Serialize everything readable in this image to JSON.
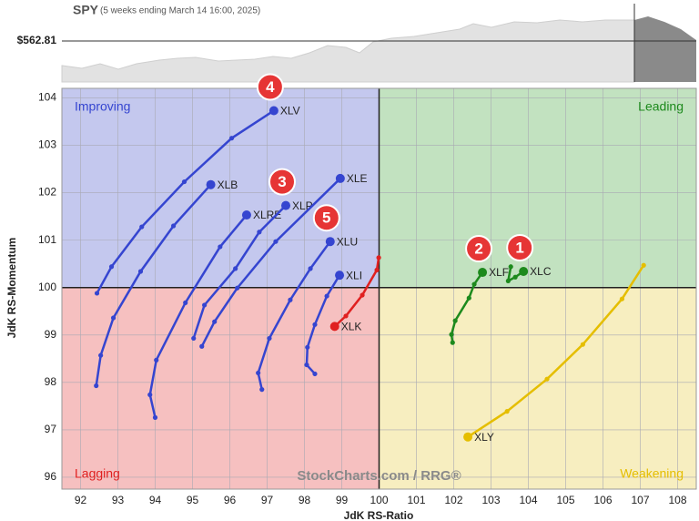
{
  "chart_data": {
    "type": "rrg",
    "title": "SPY",
    "subtitle": "(5 weeks ending March 14 16:00, 2025)",
    "price_label": "$562.81",
    "x_label": "JdK RS-Ratio",
    "y_label": "JdK RS-Momentum",
    "watermark": "StockCharts.com / RRG®",
    "xlim": [
      91.5,
      108.5
    ],
    "ylim": [
      95.75,
      104.2
    ],
    "xticks": [
      92,
      93,
      94,
      95,
      96,
      97,
      98,
      99,
      100,
      101,
      102,
      103,
      104,
      105,
      106,
      107,
      108
    ],
    "yticks": [
      96,
      97,
      98,
      99,
      100,
      101,
      102,
      103,
      104
    ],
    "grid": true,
    "center": {
      "x": 100,
      "y": 100
    },
    "quadrants": [
      {
        "name": "Improving",
        "color": "#c4c8ee"
      },
      {
        "name": "Leading",
        "color": "#c2e2c0"
      },
      {
        "name": "Lagging",
        "color": "#f6c0c0"
      },
      {
        "name": "Weakening",
        "color": "#f7eec0"
      }
    ],
    "series": [
      {
        "name": "XLV",
        "color": "#3545d0",
        "callout": "4",
        "x": [
          92.44,
          92.83,
          93.64,
          94.78,
          96.05,
          97.18
        ],
        "y": [
          99.88,
          100.44,
          101.28,
          102.23,
          103.15,
          103.73
        ]
      },
      {
        "name": "XLB",
        "color": "#3545d0",
        "x": [
          92.42,
          92.54,
          92.88,
          93.61,
          94.49,
          95.49
        ],
        "y": [
          97.93,
          98.57,
          99.36,
          100.34,
          101.3,
          102.17
        ]
      },
      {
        "name": "XLRE",
        "color": "#3545d0",
        "x": [
          94.0,
          93.86,
          94.03,
          94.81,
          95.74,
          96.45
        ],
        "y": [
          97.26,
          97.74,
          98.47,
          99.68,
          100.86,
          101.53
        ]
      },
      {
        "name": "XLP",
        "color": "#3545d0",
        "callout": "3",
        "x": [
          95.03,
          95.32,
          96.15,
          96.79,
          97.5
        ],
        "y": [
          98.93,
          99.63,
          100.4,
          101.17,
          101.73
        ]
      },
      {
        "name": "XLE",
        "color": "#3545d0",
        "x": [
          95.25,
          95.59,
          96.2,
          97.23,
          98.96
        ],
        "y": [
          98.76,
          99.28,
          99.99,
          100.97,
          102.3
        ]
      },
      {
        "name": "XLU",
        "color": "#3545d0",
        "callout": "5",
        "x": [
          96.86,
          96.76,
          97.06,
          97.62,
          98.16,
          98.69
        ],
        "y": [
          97.85,
          98.2,
          98.93,
          99.74,
          100.4,
          100.97
        ]
      },
      {
        "name": "XLI",
        "color": "#3545d0",
        "x": [
          98.28,
          98.06,
          98.08,
          98.28,
          98.6,
          98.94
        ],
        "y": [
          98.18,
          98.37,
          98.74,
          99.22,
          99.82,
          100.26
        ]
      },
      {
        "name": "XLK",
        "color": "#e02020",
        "x": [
          99.99,
          99.94,
          99.55,
          99.11,
          98.81
        ],
        "y": [
          100.63,
          100.37,
          99.84,
          99.4,
          99.18
        ]
      },
      {
        "name": "XLF",
        "color": "#1d8a1d",
        "callout": "2",
        "x": [
          101.97,
          101.94,
          102.04,
          102.41,
          102.55,
          102.77
        ],
        "y": [
          98.84,
          99.01,
          99.3,
          99.78,
          100.07,
          100.32
        ]
      },
      {
        "name": "XLC",
        "color": "#1d8a1d",
        "callout": "1",
        "x": [
          103.53,
          103.46,
          103.65,
          103.87
        ],
        "y": [
          100.44,
          100.14,
          100.22,
          100.34
        ]
      },
      {
        "name": "XLY",
        "color": "#e5be00",
        "x": [
          107.09,
          106.51,
          105.46,
          104.5,
          103.43,
          102.38
        ],
        "y": [
          100.47,
          99.76,
          98.8,
          98.07,
          97.39,
          96.85
        ]
      }
    ]
  }
}
